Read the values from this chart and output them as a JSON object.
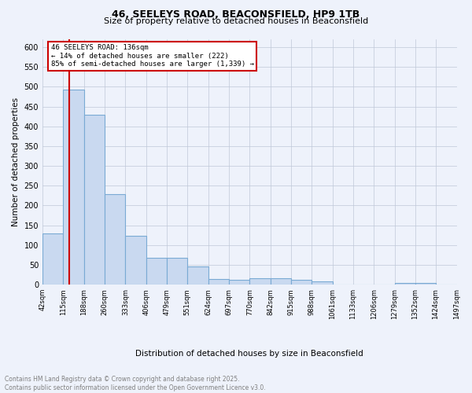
{
  "title_line1": "46, SEELEYS ROAD, BEACONSFIELD, HP9 1TB",
  "title_line2": "Size of property relative to detached houses in Beaconsfield",
  "xlabel": "Distribution of detached houses by size in Beaconsfield",
  "ylabel": "Number of detached properties",
  "bar_color": "#c9d9f0",
  "bar_edge_color": "#7aaad4",
  "reference_line_x": 136,
  "reference_line_color": "#cc0000",
  "annotation_line1": "46 SEELEYS ROAD: 136sqm",
  "annotation_line2": "← 14% of detached houses are smaller (222)",
  "annotation_line3": "85% of semi-detached houses are larger (1,339) →",
  "annotation_box_color": "#cc0000",
  "bins": [
    42,
    115,
    188,
    260,
    333,
    406,
    479,
    551,
    624,
    697,
    770,
    842,
    915,
    988,
    1061,
    1133,
    1206,
    1279,
    1352,
    1424,
    1497
  ],
  "values": [
    130,
    493,
    430,
    229,
    124,
    67,
    67,
    46,
    15,
    12,
    16,
    16,
    12,
    8,
    0,
    0,
    0,
    5,
    5,
    0,
    4
  ],
  "ylim": [
    0,
    620
  ],
  "yticks": [
    0,
    50,
    100,
    150,
    200,
    250,
    300,
    350,
    400,
    450,
    500,
    550,
    600
  ],
  "footer_line1": "Contains HM Land Registry data © Crown copyright and database right 2025.",
  "footer_line2": "Contains public sector information licensed under the Open Government Licence v3.0.",
  "bg_color": "#eef2fb",
  "plot_bg_color": "#eef2fb"
}
